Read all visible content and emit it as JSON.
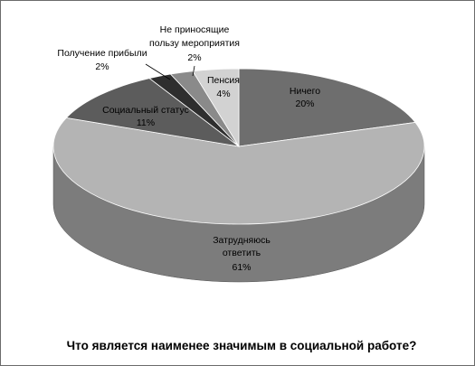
{
  "chart_data": {
    "type": "pie",
    "title": "Что является наименее значимым в социальной работе?",
    "three_d": true,
    "slices": [
      {
        "label": "Ничего",
        "value": 20,
        "value_label": "20%",
        "color": "#6e6e6e",
        "side_color": "#4a4a4a"
      },
      {
        "label": "Затрудняюсь ответить",
        "value": 61,
        "value_label": "61%",
        "color": "#b4b4b4",
        "side_color": "#7c7c7c"
      },
      {
        "label": "Социальный статус",
        "value": 11,
        "value_label": "11%",
        "color": "#5c5c5c",
        "side_color": "#3a3a3a"
      },
      {
        "label": "Получение прибыли",
        "value": 2,
        "value_label": "2%",
        "color": "#2e2e2e",
        "side_color": "#1c1c1c"
      },
      {
        "label": "Не приносящие пользу мероприятия",
        "value": 2,
        "value_label": "2%",
        "color": "#8a8a8a",
        "side_color": "#5e5e5e"
      },
      {
        "label": "Пенсия",
        "value": 4,
        "value_label": "4%",
        "color": "#d2d2d2",
        "side_color": "#9a9a9a"
      }
    ]
  },
  "labels": {
    "nichego": {
      "line1": "Ничего",
      "pct": "20%"
    },
    "zatrud": {
      "line1": "Затрудняюсь",
      "line2": "ответить",
      "pct": "61%"
    },
    "social": {
      "line1": "Социальный статус",
      "pct": "11%"
    },
    "pribyl": {
      "line1": "Получение прибыли",
      "pct": "2%"
    },
    "meropr": {
      "line1": "Не приносящие",
      "line2": "пользу мероприятия",
      "pct": "2%"
    },
    "pensia": {
      "line1": "Пенсия",
      "pct": "4%"
    }
  }
}
